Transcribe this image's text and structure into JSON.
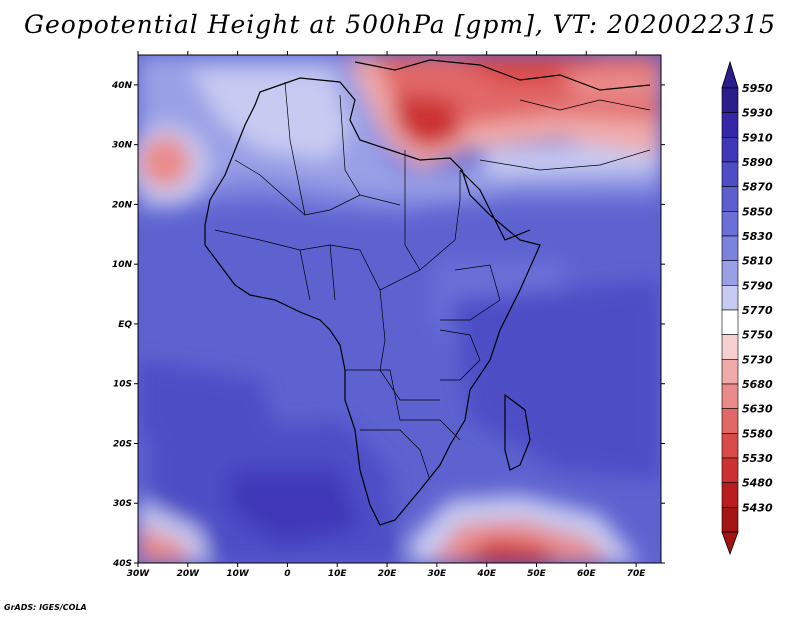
{
  "title": "Geopotential Height at 500hPa [gpm], VT: 2020022315",
  "credit": "GrADS: IGES/COLA",
  "map": {
    "lat_labels": [
      "40N",
      "30N",
      "20N",
      "10N",
      "EQ",
      "10S",
      "20S",
      "30S",
      "40S"
    ],
    "lon_labels": [
      "30W",
      "20W",
      "10W",
      "0",
      "10E",
      "20E",
      "30E",
      "40E",
      "50E",
      "60E",
      "70E"
    ],
    "lat_range": [
      -40,
      45
    ],
    "lon_range": [
      -30,
      75
    ]
  },
  "colorbar": {
    "levels": [
      "5950",
      "5930",
      "5910",
      "5890",
      "5870",
      "5850",
      "5830",
      "5810",
      "5790",
      "5770",
      "5750",
      "5730",
      "5680",
      "5630",
      "5580",
      "5530",
      "5480",
      "5430"
    ],
    "colors": [
      "#2a1e8c",
      "#3428a8",
      "#3f38b8",
      "#4d4dc6",
      "#5b5fd0",
      "#6b70d8",
      "#7c82de",
      "#9aa0e6",
      "#c7cbf2",
      "#ffffff",
      "#f6d0d0",
      "#f0aaaa",
      "#ea8a8a",
      "#e26868",
      "#d94a4a",
      "#cc3030",
      "#b81c1c",
      "#a31414"
    ]
  }
}
